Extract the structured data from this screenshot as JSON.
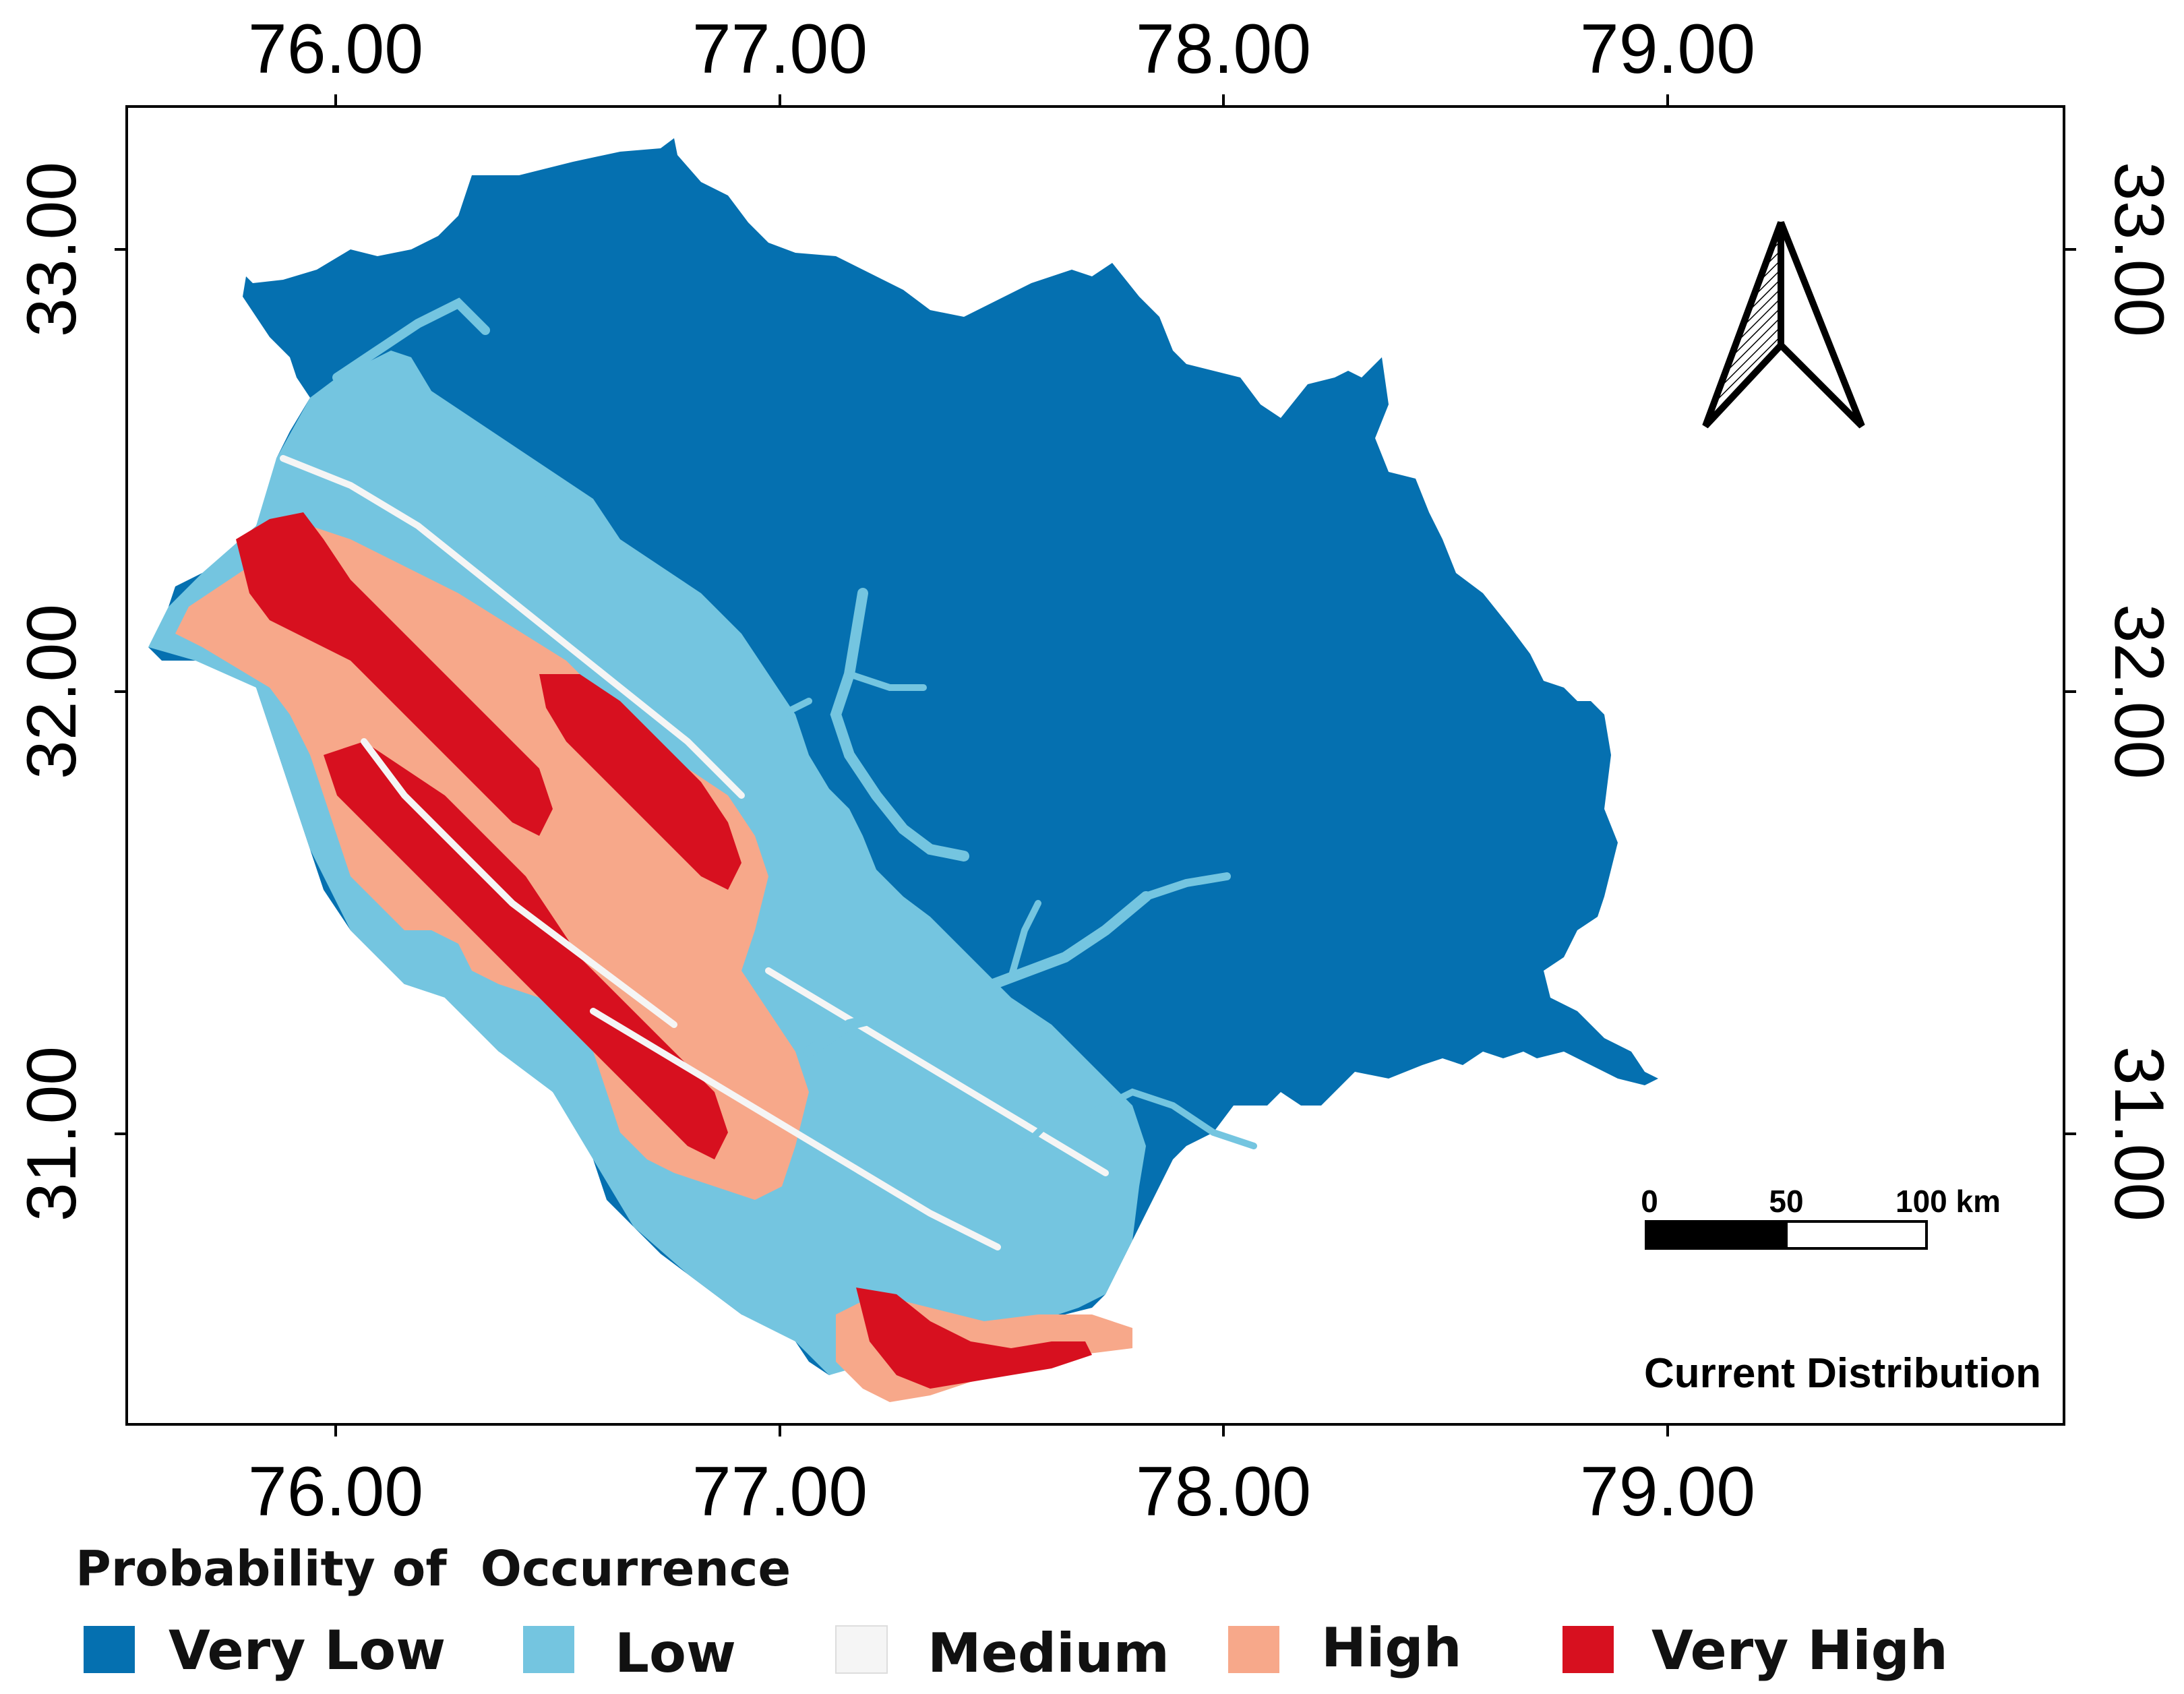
{
  "map": {
    "title": "Current Distribution",
    "longitude_ticks": [
      "76.00",
      "77.00",
      "78.00",
      "79.00"
    ],
    "latitude_ticks": [
      "33.00",
      "32.00",
      "31.00"
    ],
    "scale_bar": {
      "labels": [
        "0",
        "50",
        "100 km"
      ]
    },
    "north_arrow": "north-arrow-icon"
  },
  "legend": {
    "title": "Probability of  Occurrence",
    "classes": [
      {
        "label": "Very Low",
        "color": "#0570b0"
      },
      {
        "label": "Low",
        "color": "#74c5e0"
      },
      {
        "label": "Medium",
        "color": "#f5f5f5"
      },
      {
        "label": "High",
        "color": "#f7a88a"
      },
      {
        "label": "Very High",
        "color": "#d7101f"
      }
    ]
  }
}
